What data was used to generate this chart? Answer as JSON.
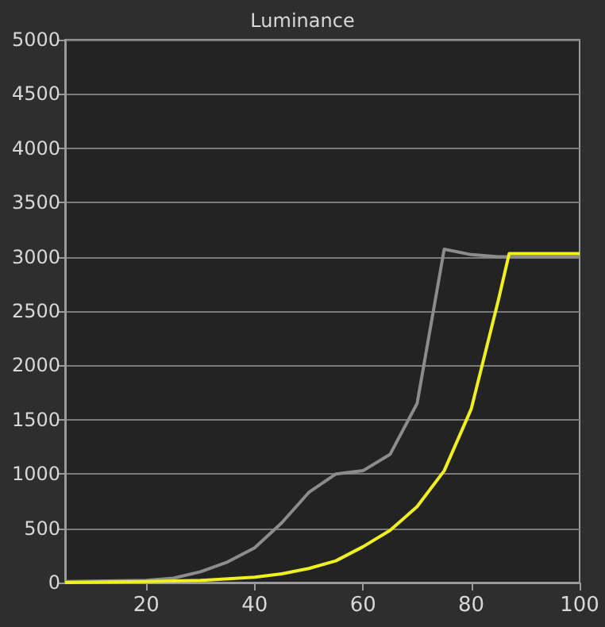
{
  "chart_data": {
    "type": "line",
    "title": "Luminance",
    "xlim": [
      5,
      100
    ],
    "xticks": [
      20,
      40,
      60,
      80,
      100
    ],
    "ylim": [
      0,
      5000
    ],
    "yticks": [
      0,
      500,
      1000,
      1500,
      2000,
      2500,
      3000,
      3500,
      4000,
      4500,
      5000
    ],
    "grid": "y",
    "marker": "none",
    "line_style": "solid",
    "series": [
      {
        "color": "#8c8c8c",
        "x": [
          5,
          20,
          25,
          30,
          35,
          40,
          45,
          50,
          55,
          60,
          65,
          70,
          75,
          80,
          85,
          90,
          95,
          100
        ],
        "values": [
          10,
          20,
          40,
          100,
          190,
          320,
          550,
          830,
          1000,
          1030,
          1180,
          1650,
          3070,
          3020,
          3000,
          3000,
          3000,
          3000
        ]
      },
      {
        "color": "#f0f020",
        "x": [
          5,
          20,
          30,
          40,
          45,
          50,
          55,
          60,
          65,
          70,
          75,
          80,
          85,
          87,
          90,
          100
        ],
        "values": [
          0,
          10,
          20,
          50,
          80,
          130,
          200,
          330,
          480,
          700,
          1030,
          1600,
          2600,
          3030,
          3030,
          3030
        ]
      }
    ]
  }
}
